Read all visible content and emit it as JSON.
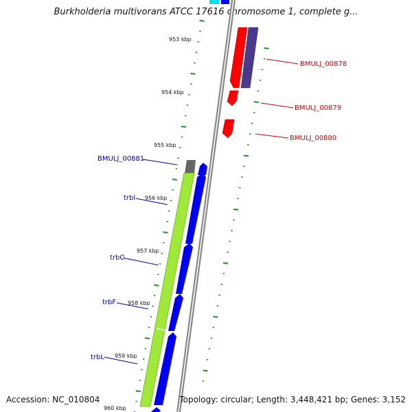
{
  "title": "Burkholderia multivorans ATCC 17616 chromosome 1, complete g...",
  "footer": {
    "accession": "Accession: NC_010804",
    "topology": "Topology: circular; Length: 3,448,421 bp; Genes: 3,152"
  },
  "ticks": [
    "953 kbp",
    "954 kbp",
    "955 kbp",
    "956 kbp",
    "957 kbp",
    "958 kbp",
    "959 kbp",
    "960 kbp"
  ],
  "genes": [
    {
      "name": "BMULJ_00878",
      "color": "#cc0000"
    },
    {
      "name": "BMULJ_00879",
      "color": "#cc0000"
    },
    {
      "name": "BMULJ_00880",
      "color": "#cc0000"
    },
    {
      "name": "BMULJ_00881",
      "color": "#0000aa"
    },
    {
      "name": "trbI",
      "color": "#0000aa"
    },
    {
      "name": "trbG",
      "color": "#0000aa"
    },
    {
      "name": "trbF",
      "color": "#0000aa"
    },
    {
      "name": "trbL",
      "color": "#0000aa"
    }
  ],
  "colors": {
    "forward_feature": "#ff0000",
    "reverse_feature": "#0000ee",
    "rna_feature": "#4b3a8c",
    "operon_band": "#a0e83a",
    "backbone": "#888888",
    "tick_marks": "#228b22"
  }
}
